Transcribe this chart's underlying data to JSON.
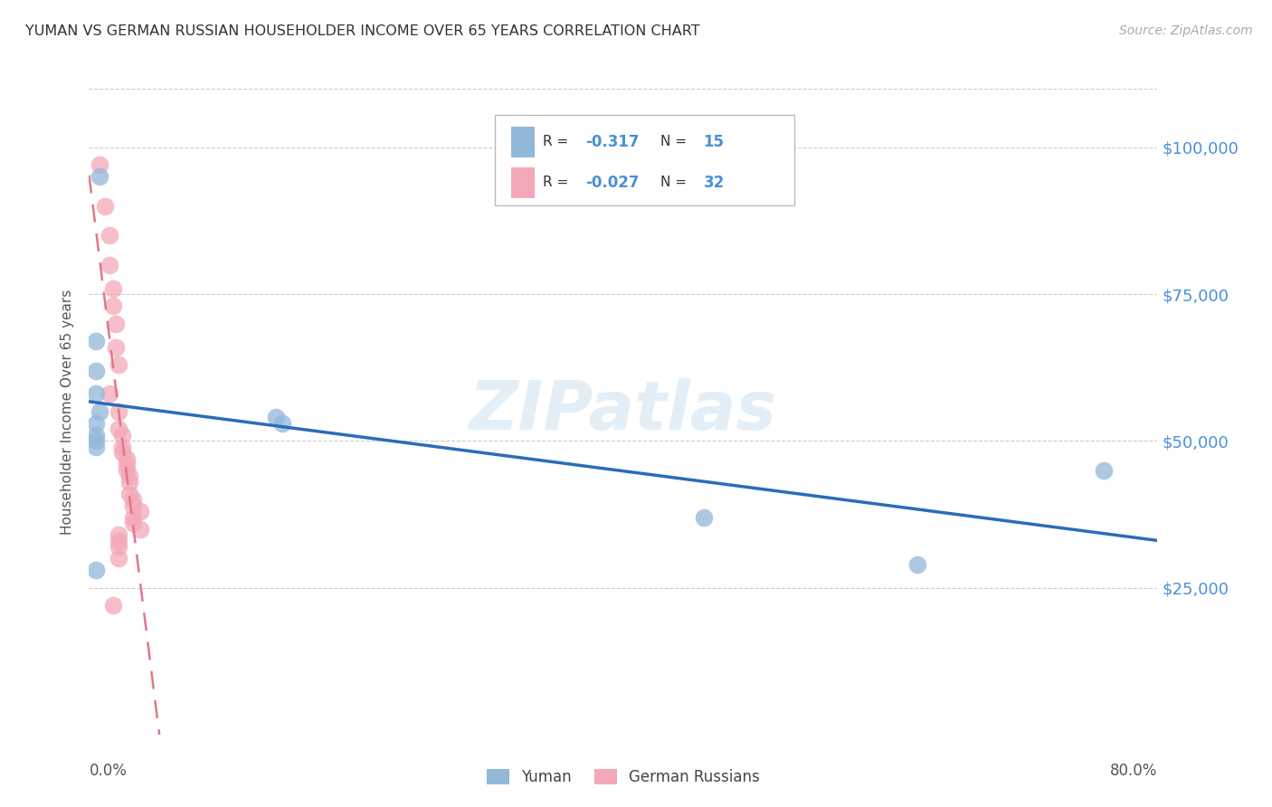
{
  "title": "YUMAN VS GERMAN RUSSIAN HOUSEHOLDER INCOME OVER 65 YEARS CORRELATION CHART",
  "source": "Source: ZipAtlas.com",
  "ylabel": "Householder Income Over 65 years",
  "watermark": "ZIPatlas",
  "ytick_labels": [
    "$25,000",
    "$50,000",
    "$75,000",
    "$100,000"
  ],
  "ytick_values": [
    25000,
    50000,
    75000,
    100000
  ],
  "ylim": [
    0,
    110000
  ],
  "xlim": [
    0.0,
    0.8
  ],
  "blue_color": "#92b8d9",
  "pink_color": "#f4a8b8",
  "line_blue_color": "#2b6cb8",
  "line_pink_color": "#e07888",
  "background_color": "#ffffff",
  "grid_color": "#cccccc",
  "yuman_points": [
    [
      0.008,
      95000
    ],
    [
      0.005,
      67000
    ],
    [
      0.008,
      55000
    ],
    [
      0.005,
      62000
    ],
    [
      0.005,
      58000
    ],
    [
      0.005,
      53000
    ],
    [
      0.005,
      51000
    ],
    [
      0.005,
      50000
    ],
    [
      0.005,
      49000
    ],
    [
      0.005,
      28000
    ],
    [
      0.14,
      54000
    ],
    [
      0.145,
      53000
    ],
    [
      0.46,
      37000
    ],
    [
      0.62,
      29000
    ],
    [
      0.76,
      45000
    ]
  ],
  "german_russian_points": [
    [
      0.008,
      97000
    ],
    [
      0.012,
      90000
    ],
    [
      0.015,
      85000
    ],
    [
      0.015,
      80000
    ],
    [
      0.018,
      76000
    ],
    [
      0.018,
      73000
    ],
    [
      0.02,
      70000
    ],
    [
      0.02,
      66000
    ],
    [
      0.022,
      63000
    ],
    [
      0.015,
      58000
    ],
    [
      0.022,
      55000
    ],
    [
      0.022,
      52000
    ],
    [
      0.025,
      51000
    ],
    [
      0.025,
      49000
    ],
    [
      0.025,
      48000
    ],
    [
      0.028,
      47000
    ],
    [
      0.028,
      46000
    ],
    [
      0.028,
      45000
    ],
    [
      0.03,
      44000
    ],
    [
      0.03,
      43000
    ],
    [
      0.03,
      41000
    ],
    [
      0.033,
      40000
    ],
    [
      0.033,
      39000
    ],
    [
      0.033,
      37000
    ],
    [
      0.033,
      36000
    ],
    [
      0.038,
      38000
    ],
    [
      0.038,
      35000
    ],
    [
      0.022,
      34000
    ],
    [
      0.022,
      33000
    ],
    [
      0.022,
      32000
    ],
    [
      0.022,
      30000
    ],
    [
      0.018,
      22000
    ]
  ]
}
